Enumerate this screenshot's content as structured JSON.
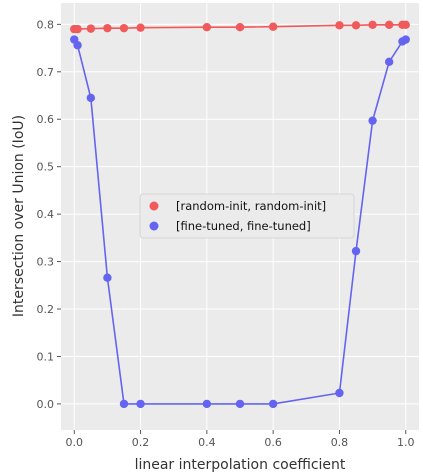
{
  "chart_data": {
    "type": "line",
    "xlabel": "linear interpolation coefficient",
    "ylabel": "Intersection over Union (IoU)",
    "xlim": [
      -0.04,
      1.04
    ],
    "ylim": [
      -0.055,
      0.845
    ],
    "x_ticks": [
      "0.0",
      "0.2",
      "0.4",
      "0.6",
      "0.8",
      "1.0"
    ],
    "x_tick_values": [
      0.0,
      0.2,
      0.4,
      0.6,
      0.8,
      1.0
    ],
    "y_ticks": [
      "0.0",
      "0.1",
      "0.2",
      "0.3",
      "0.4",
      "0.5",
      "0.6",
      "0.7",
      "0.8"
    ],
    "y_tick_values": [
      0.0,
      0.1,
      0.2,
      0.3,
      0.4,
      0.5,
      0.6,
      0.7,
      0.8
    ],
    "grid": true,
    "background": "#ebebeb",
    "legend_position": "center",
    "series": [
      {
        "name": "[random-init, random-init]",
        "color": "#f05a5a",
        "x": [
          0.0,
          0.01,
          0.05,
          0.1,
          0.15,
          0.2,
          0.4,
          0.5,
          0.6,
          0.8,
          0.85,
          0.9,
          0.95,
          0.99,
          1.0
        ],
        "y": [
          0.79,
          0.79,
          0.791,
          0.792,
          0.792,
          0.793,
          0.794,
          0.794,
          0.795,
          0.798,
          0.798,
          0.799,
          0.799,
          0.799,
          0.799
        ]
      },
      {
        "name": "[fine-tuned, fine-tuned]",
        "color": "#6464f0",
        "x": [
          0.0,
          0.01,
          0.05,
          0.1,
          0.15,
          0.2,
          0.4,
          0.5,
          0.6,
          0.8,
          0.85,
          0.9,
          0.95,
          0.99,
          1.0
        ],
        "y": [
          0.768,
          0.756,
          0.645,
          0.266,
          0.0,
          0.0,
          0.0,
          0.0,
          0.0,
          0.023,
          0.322,
          0.597,
          0.721,
          0.764,
          0.768
        ]
      }
    ]
  }
}
